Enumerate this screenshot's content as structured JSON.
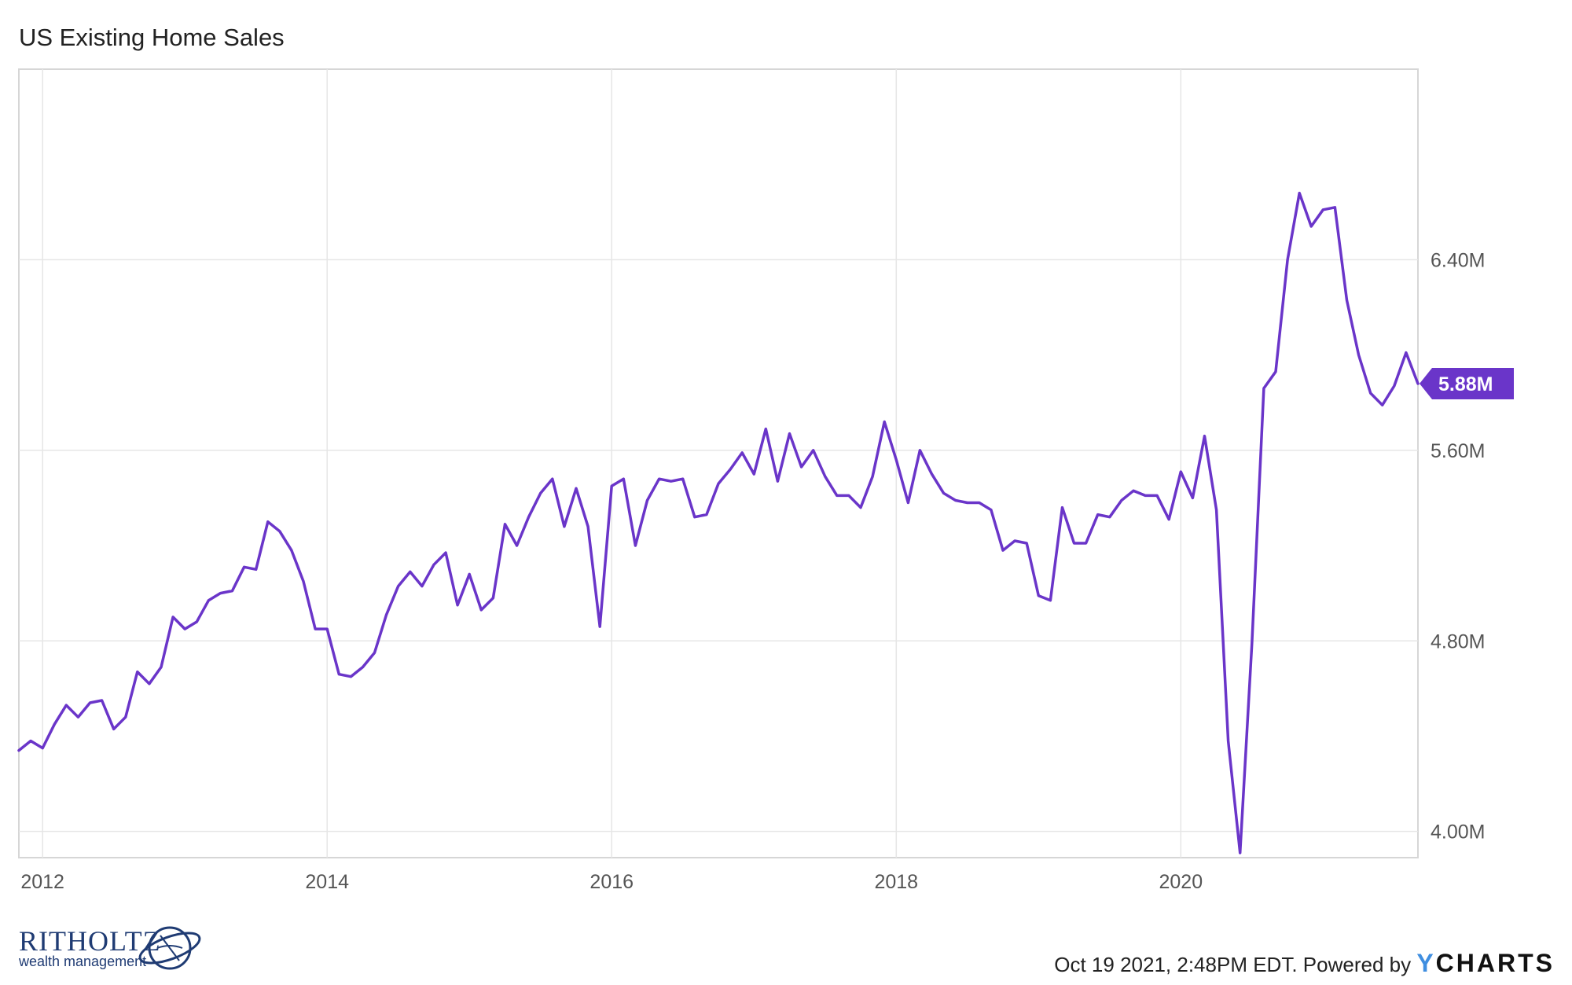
{
  "chart_data": {
    "type": "line",
    "title": "US Existing Home Sales",
    "xlabel": "",
    "ylabel": "",
    "x_ticks": [
      "2012",
      "2014",
      "2016",
      "2018",
      "2020"
    ],
    "y_ticks": [
      "4.00M",
      "4.80M",
      "5.60M",
      "6.40M"
    ],
    "y_tick_values": [
      4.0,
      4.8,
      5.6,
      6.4
    ],
    "ylim": [
      3.89,
      7.2
    ],
    "xlim": [
      "2011-11",
      "2021-09"
    ],
    "grid": true,
    "series": [
      {
        "color": "#6a35c9",
        "x": [
          "2011-11",
          "2011-12",
          "2012-01",
          "2012-02",
          "2012-03",
          "2012-04",
          "2012-05",
          "2012-06",
          "2012-07",
          "2012-08",
          "2012-09",
          "2012-10",
          "2012-11",
          "2012-12",
          "2013-01",
          "2013-02",
          "2013-03",
          "2013-04",
          "2013-05",
          "2013-06",
          "2013-07",
          "2013-08",
          "2013-09",
          "2013-10",
          "2013-11",
          "2013-12",
          "2014-01",
          "2014-02",
          "2014-03",
          "2014-04",
          "2014-05",
          "2014-06",
          "2014-07",
          "2014-08",
          "2014-09",
          "2014-10",
          "2014-11",
          "2014-12",
          "2015-01",
          "2015-02",
          "2015-03",
          "2015-04",
          "2015-05",
          "2015-06",
          "2015-07",
          "2015-08",
          "2015-09",
          "2015-10",
          "2015-11",
          "2015-12",
          "2016-01",
          "2016-02",
          "2016-03",
          "2016-04",
          "2016-05",
          "2016-06",
          "2016-07",
          "2016-08",
          "2016-09",
          "2016-10",
          "2016-11",
          "2016-12",
          "2017-01",
          "2017-02",
          "2017-03",
          "2017-04",
          "2017-05",
          "2017-06",
          "2017-07",
          "2017-08",
          "2017-09",
          "2017-10",
          "2017-11",
          "2017-12",
          "2018-01",
          "2018-02",
          "2018-03",
          "2018-04",
          "2018-05",
          "2018-06",
          "2018-07",
          "2018-08",
          "2018-09",
          "2018-10",
          "2018-11",
          "2018-12",
          "2019-01",
          "2019-02",
          "2019-03",
          "2019-04",
          "2019-05",
          "2019-06",
          "2019-07",
          "2019-08",
          "2019-09",
          "2019-10",
          "2019-11",
          "2019-12",
          "2020-01",
          "2020-02",
          "2020-03",
          "2020-04",
          "2020-05",
          "2020-06",
          "2020-07",
          "2020-08",
          "2020-09",
          "2020-10",
          "2020-11",
          "2020-12",
          "2021-01",
          "2021-02",
          "2021-03",
          "2021-04",
          "2021-05",
          "2021-06",
          "2021-07",
          "2021-08",
          "2021-09"
        ],
        "values": [
          4.34,
          4.38,
          4.35,
          4.45,
          4.53,
          4.48,
          4.54,
          4.55,
          4.43,
          4.48,
          4.67,
          4.62,
          4.69,
          4.9,
          4.85,
          4.88,
          4.97,
          5.0,
          5.01,
          5.11,
          5.1,
          5.3,
          5.26,
          5.18,
          5.05,
          4.85,
          4.85,
          4.66,
          4.65,
          4.69,
          4.75,
          4.91,
          5.03,
          5.09,
          5.03,
          5.12,
          5.17,
          4.95,
          5.08,
          4.93,
          4.98,
          5.29,
          5.2,
          5.32,
          5.42,
          5.48,
          5.28,
          5.44,
          5.28,
          4.86,
          5.45,
          5.48,
          5.2,
          5.39,
          5.48,
          5.47,
          5.48,
          5.32,
          5.33,
          5.46,
          5.52,
          5.59,
          5.5,
          5.69,
          5.47,
          5.67,
          5.53,
          5.6,
          5.49,
          5.41,
          5.41,
          5.36,
          5.49,
          5.72,
          5.56,
          5.38,
          5.6,
          5.5,
          5.42,
          5.39,
          5.38,
          5.38,
          5.35,
          5.18,
          5.22,
          5.21,
          4.99,
          4.97,
          5.36,
          5.21,
          5.21,
          5.33,
          5.32,
          5.39,
          5.43,
          5.41,
          5.41,
          5.31,
          5.51,
          5.4,
          5.66,
          5.35,
          4.38,
          3.91,
          4.79,
          5.86,
          5.93,
          6.4,
          6.68,
          6.54,
          6.61,
          6.62,
          6.23,
          6.0,
          5.84,
          5.79,
          5.87,
          6.01,
          5.88
        ]
      }
    ],
    "last_value_label": "5.88M"
  },
  "footer": {
    "brand_name": "RITHOLTZ",
    "brand_sub": "wealth management",
    "timestamp": "Oct 19 2021, 2:48PM EDT.",
    "powered_by": "Powered by",
    "ycharts_y": "Y",
    "ycharts_rest": "CHARTS"
  }
}
